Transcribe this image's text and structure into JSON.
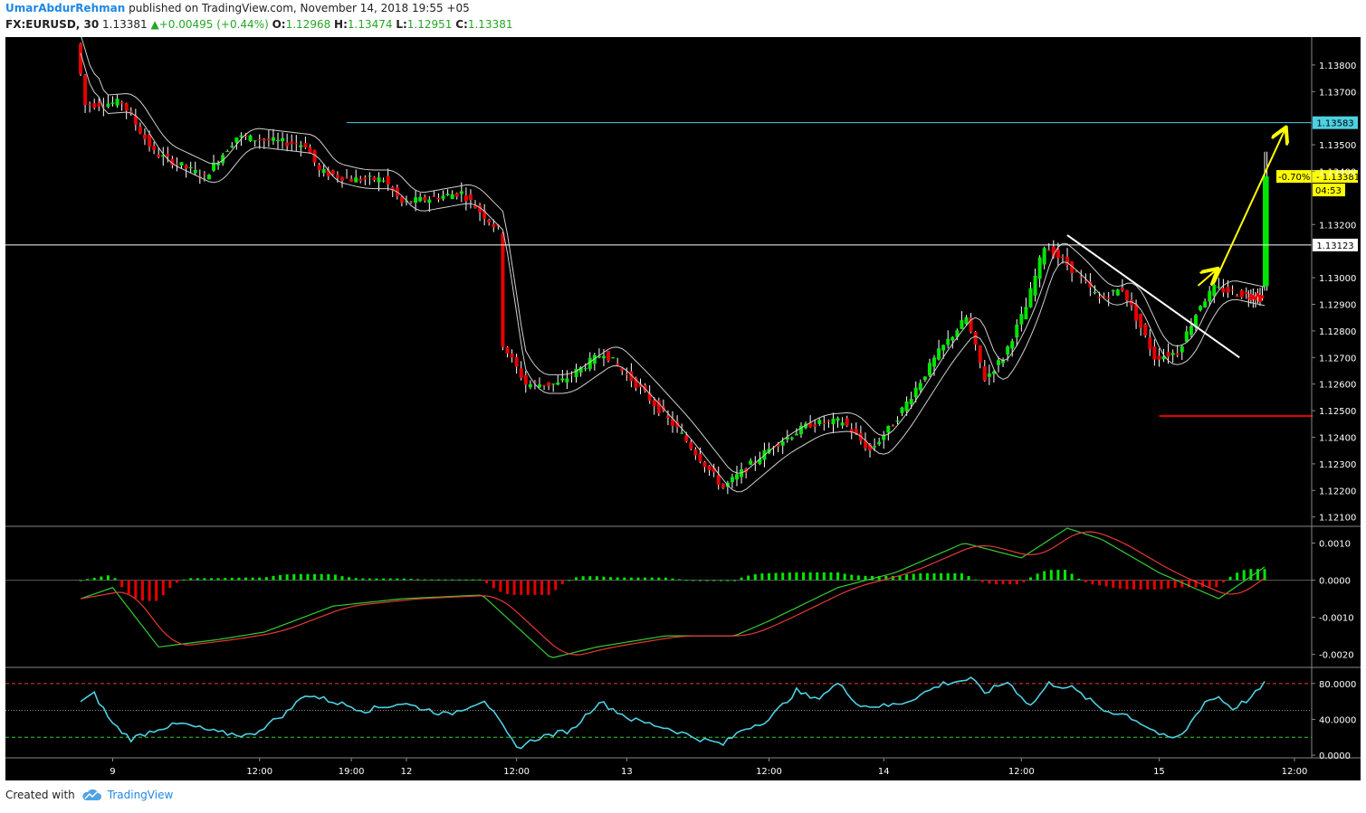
{
  "header": {
    "author": "UmarAbdurRehman",
    "published_text": "published on TradingView.com, November 14, 2018 19:55 +05",
    "symbol": "FX:EURUSD, 30",
    "last": "1.13381",
    "change": "+0.00495 (+0.44%)",
    "o_label": "O:",
    "o": "1.12968",
    "h_label": "H:",
    "h": "1.13474",
    "l_label": "L:",
    "l": "1.12951",
    "c_label": "C:",
    "c": "1.13381"
  },
  "footer": {
    "created_with": "Created with",
    "brand": "TradingView"
  },
  "colors": {
    "background": "#000000",
    "up": "#00e600",
    "down": "#e60000",
    "cyan": "#4dd0e1",
    "yellow": "#ffff00",
    "white": "#ffffff",
    "rsi": "#4dd0e1",
    "macd": "#33cc33",
    "signal": "#e53935"
  },
  "chart_data": [
    {
      "type": "candlestick",
      "panel": "price",
      "y_ticks": [
        "1.13800",
        "1.13700",
        "1.13500",
        "1.13400",
        "1.13200",
        "1.13000",
        "1.12900",
        "1.12800",
        "1.12700",
        "1.12600",
        "1.12500",
        "1.12400",
        "1.12300",
        "1.12200",
        "1.12100"
      ],
      "y_tick_values": [
        1.138,
        1.137,
        1.135,
        1.134,
        1.132,
        1.13,
        1.129,
        1.128,
        1.127,
        1.126,
        1.125,
        1.124,
        1.123,
        1.122,
        1.121
      ],
      "ylim": [
        1.12065,
        1.13905
      ],
      "x_ticks": [
        "9",
        "12:00",
        "19:00",
        "12",
        "12:00",
        "13",
        "12:00",
        "14",
        "12:00",
        "15",
        "12:00"
      ],
      "x_tick_index": [
        14,
        78,
        118,
        142,
        190,
        238,
        300,
        350,
        410,
        470,
        529
      ],
      "bars_shown": 472,
      "key_points": [
        {
          "i": 0,
          "p": 1.1388
        },
        {
          "i": 4,
          "p": 1.1365
        },
        {
          "i": 20,
          "p": 1.1366
        },
        {
          "i": 34,
          "p": 1.1347
        },
        {
          "i": 56,
          "p": 1.1338
        },
        {
          "i": 70,
          "p": 1.1353
        },
        {
          "i": 100,
          "p": 1.135
        },
        {
          "i": 106,
          "p": 1.134
        },
        {
          "i": 120,
          "p": 1.1337
        },
        {
          "i": 134,
          "p": 1.1337
        },
        {
          "i": 142,
          "p": 1.1328
        },
        {
          "i": 168,
          "p": 1.1332
        },
        {
          "i": 184,
          "p": 1.1318
        },
        {
          "i": 186,
          "p": 1.1275
        },
        {
          "i": 196,
          "p": 1.126
        },
        {
          "i": 210,
          "p": 1.126
        },
        {
          "i": 230,
          "p": 1.1272
        },
        {
          "i": 244,
          "p": 1.126
        },
        {
          "i": 262,
          "p": 1.1243
        },
        {
          "i": 282,
          "p": 1.1221
        },
        {
          "i": 304,
          "p": 1.1237
        },
        {
          "i": 320,
          "p": 1.1245
        },
        {
          "i": 334,
          "p": 1.1246
        },
        {
          "i": 346,
          "p": 1.1235
        },
        {
          "i": 356,
          "p": 1.1245
        },
        {
          "i": 376,
          "p": 1.1272
        },
        {
          "i": 388,
          "p": 1.1285
        },
        {
          "i": 396,
          "p": 1.1262
        },
        {
          "i": 404,
          "p": 1.127
        },
        {
          "i": 414,
          "p": 1.1289
        },
        {
          "i": 422,
          "p": 1.1312
        },
        {
          "i": 432,
          "p": 1.1305
        },
        {
          "i": 446,
          "p": 1.1292
        },
        {
          "i": 456,
          "p": 1.1296
        },
        {
          "i": 462,
          "p": 1.1285
        },
        {
          "i": 470,
          "p": 1.127
        },
        {
          "i": 480,
          "p": 1.1272
        },
        {
          "i": 490,
          "p": 1.129
        },
        {
          "i": 496,
          "p": 1.1296
        }
      ],
      "last_bar": {
        "open": 1.12968,
        "high": 1.13474,
        "low": 1.12951,
        "close": 1.13381
      },
      "hlines": [
        {
          "price": 1.13583,
          "label": "1.13583",
          "color": "#4dd0e1"
        },
        {
          "price": 1.13123,
          "label": "1.13123",
          "color": "#ffffff"
        }
      ],
      "price_label": {
        "text": "1.13381",
        "pct": "-0.70%",
        "timer": "04:53"
      },
      "drawings": [
        {
          "kind": "trendline",
          "color": "#ffffff",
          "from": {
            "i": 430,
            "p": 1.1316
          },
          "to": {
            "i": 505,
            "p": 1.127
          }
        },
        {
          "kind": "arrow",
          "color": "#ffff00",
          "from": {
            "i": 487,
            "p": 1.1297
          },
          "to": {
            "i": 495,
            "p": 1.1303
          }
        },
        {
          "kind": "arrow",
          "color": "#ffff00",
          "from": {
            "i": 494,
            "p": 1.1298
          },
          "to": {
            "i": 525,
            "p": 1.1356
          }
        },
        {
          "kind": "line",
          "color": "#e60000",
          "from": {
            "i": 470,
            "p": 1.1248
          },
          "to": {
            "i": 537,
            "p": 1.1248
          }
        }
      ]
    },
    {
      "type": "macd",
      "panel": "macd",
      "y_ticks": [
        "0.0010",
        "0.0000",
        "-0.0010",
        "-0.0020"
      ],
      "y_tick_values": [
        0.001,
        0.0,
        -0.001,
        -0.002
      ],
      "ylim": [
        -0.00235,
        0.00145
      ],
      "key_points": [
        {
          "i": 0,
          "m": -0.0005
        },
        {
          "i": 14,
          "m": -0.0002
        },
        {
          "i": 34,
          "m": -0.0018
        },
        {
          "i": 60,
          "m": -0.0016
        },
        {
          "i": 80,
          "m": -0.0014
        },
        {
          "i": 110,
          "m": -0.0007
        },
        {
          "i": 140,
          "m": -0.0005
        },
        {
          "i": 175,
          "m": -0.0004
        },
        {
          "i": 205,
          "m": -0.0021
        },
        {
          "i": 225,
          "m": -0.0018
        },
        {
          "i": 255,
          "m": -0.0015
        },
        {
          "i": 285,
          "m": -0.0015
        },
        {
          "i": 300,
          "m": -0.0011
        },
        {
          "i": 330,
          "m": -0.0002
        },
        {
          "i": 355,
          "m": 0.0002
        },
        {
          "i": 385,
          "m": 0.001
        },
        {
          "i": 410,
          "m": 0.0006
        },
        {
          "i": 430,
          "m": 0.0014
        },
        {
          "i": 445,
          "m": 0.0011
        },
        {
          "i": 470,
          "m": 0.0002
        },
        {
          "i": 496,
          "m": -0.0005
        },
        {
          "i": 517,
          "m": 0.0004
        }
      ]
    },
    {
      "type": "line",
      "panel": "rsi",
      "y_ticks": [
        "80.0000",
        "40.0000",
        "0.0000"
      ],
      "y_tick_values": [
        80,
        40,
        0
      ],
      "ylim": [
        -3,
        98
      ],
      "levels": {
        "upper": 80,
        "middle": 50,
        "lower": 20
      },
      "key_points": [
        {
          "i": 0,
          "r": 60
        },
        {
          "i": 6,
          "r": 68
        },
        {
          "i": 14,
          "r": 35
        },
        {
          "i": 22,
          "r": 18
        },
        {
          "i": 34,
          "r": 30
        },
        {
          "i": 44,
          "r": 35
        },
        {
          "i": 60,
          "r": 25
        },
        {
          "i": 74,
          "r": 22
        },
        {
          "i": 90,
          "r": 48
        },
        {
          "i": 98,
          "r": 68
        },
        {
          "i": 110,
          "r": 60
        },
        {
          "i": 124,
          "r": 50
        },
        {
          "i": 140,
          "r": 58
        },
        {
          "i": 160,
          "r": 45
        },
        {
          "i": 176,
          "r": 62
        },
        {
          "i": 190,
          "r": 8
        },
        {
          "i": 200,
          "r": 20
        },
        {
          "i": 214,
          "r": 28
        },
        {
          "i": 226,
          "r": 60
        },
        {
          "i": 240,
          "r": 40
        },
        {
          "i": 256,
          "r": 30
        },
        {
          "i": 270,
          "r": 18
        },
        {
          "i": 280,
          "r": 12
        },
        {
          "i": 288,
          "r": 28
        },
        {
          "i": 300,
          "r": 40
        },
        {
          "i": 312,
          "r": 72
        },
        {
          "i": 320,
          "r": 62
        },
        {
          "i": 330,
          "r": 80
        },
        {
          "i": 340,
          "r": 55
        },
        {
          "i": 352,
          "r": 55
        },
        {
          "i": 360,
          "r": 60
        },
        {
          "i": 376,
          "r": 80
        },
        {
          "i": 388,
          "r": 85
        },
        {
          "i": 394,
          "r": 70
        },
        {
          "i": 404,
          "r": 82
        },
        {
          "i": 414,
          "r": 55
        },
        {
          "i": 422,
          "r": 80
        },
        {
          "i": 432,
          "r": 75
        },
        {
          "i": 446,
          "r": 50
        },
        {
          "i": 456,
          "r": 45
        },
        {
          "i": 466,
          "r": 30
        },
        {
          "i": 474,
          "r": 18
        },
        {
          "i": 480,
          "r": 22
        },
        {
          "i": 490,
          "r": 60
        },
        {
          "i": 496,
          "r": 65
        },
        {
          "i": 502,
          "r": 52
        },
        {
          "i": 510,
          "r": 64
        },
        {
          "i": 517,
          "r": 82
        }
      ]
    }
  ]
}
